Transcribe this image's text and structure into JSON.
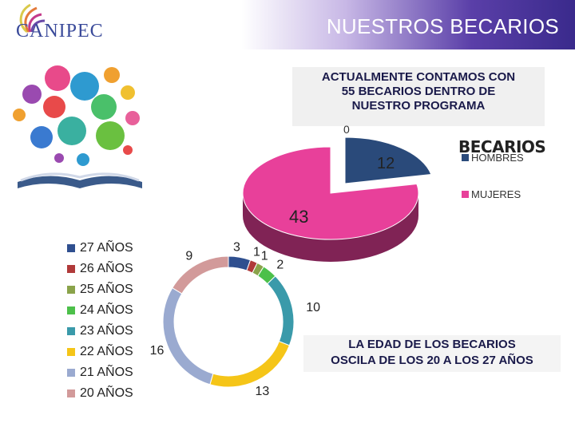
{
  "header": {
    "title": "NUESTROS BECARIOS",
    "logo_text": "CANIPEC"
  },
  "callout": {
    "lines": [
      "ACTUALMENTE CONTAMOS CON",
      "55 BECARIOS DENTRO DE",
      "NUESTRO PROGRAMA"
    ]
  },
  "note": {
    "lines": [
      "LA EDAD DE LOS BECARIOS",
      "OSCILA DE LOS 20 A LOS 27 AÑOS"
    ]
  },
  "colors": {
    "hombres": "#2a4a7a",
    "mujeres": "#e8409a",
    "header_accent": "#3a2a8c"
  },
  "chart_data": [
    {
      "type": "pie",
      "title": "BECARIOS",
      "labels": [
        "HOMBRES",
        "MUJERES"
      ],
      "values": [
        12,
        43
      ],
      "extra_label": "0",
      "colors": [
        "#2a4a7a",
        "#e8409a"
      ],
      "legend": "right",
      "style": "3d"
    },
    {
      "type": "doughnut",
      "labels": [
        "27 AÑOS",
        "26 AÑOS",
        "25 AÑOS",
        "24 AÑOS",
        "23 AÑOS",
        "22 AÑOS",
        "21 AÑOS",
        "20 AÑOS"
      ],
      "values": [
        3,
        1,
        1,
        2,
        10,
        13,
        16,
        9
      ],
      "colors": [
        "#2f4f8f",
        "#b03a3a",
        "#8aa34a",
        "#4cc04a",
        "#3a9aaa",
        "#f5c518",
        "#9aaad0",
        "#d29a9a"
      ],
      "legend": "left"
    }
  ]
}
